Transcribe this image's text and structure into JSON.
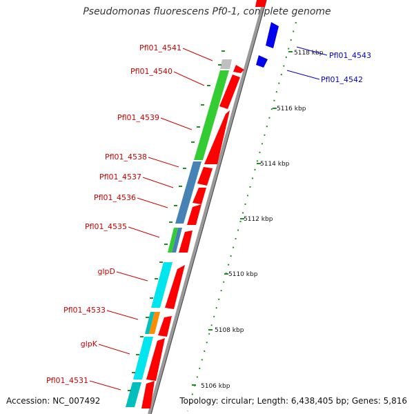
{
  "title": "Pseudomonas fluorescens Pf0-1, complete genome",
  "accession": "Accession: NC_007492",
  "stats": "Topology: circular; Length: 6,438,405 bp; Genes: 5,816",
  "colors": {
    "label_red": "#cc0000",
    "label_blue": "#0000cc",
    "minor_tick": "#228b22",
    "backbone": "#999999"
  },
  "ticks": [
    "5106 kbp",
    "5108 kbp",
    "5110 kbp",
    "5112 kbp",
    "5114 kbp",
    "5116 kbp",
    "5118 kbp"
  ],
  "genes": [
    {
      "name": "Pfl01_4541",
      "strand": "minus"
    },
    {
      "name": "Pfl01_4540",
      "strand": "minus"
    },
    {
      "name": "Pfl01_4539",
      "strand": "minus"
    },
    {
      "name": "Pfl01_4538",
      "strand": "minus"
    },
    {
      "name": "Pfl01_4537",
      "strand": "minus"
    },
    {
      "name": "Pfl01_4536",
      "strand": "minus"
    },
    {
      "name": "Pfl01_4535",
      "strand": "minus"
    },
    {
      "name": "glpD",
      "strand": "minus"
    },
    {
      "name": "Pfl01_4533",
      "strand": "minus"
    },
    {
      "name": "glpK",
      "strand": "minus"
    },
    {
      "name": "Pfl01_4531",
      "strand": "minus"
    },
    {
      "name": "Pfl01_4543",
      "strand": "plus"
    },
    {
      "name": "Pfl01_4542",
      "strand": "plus"
    }
  ]
}
